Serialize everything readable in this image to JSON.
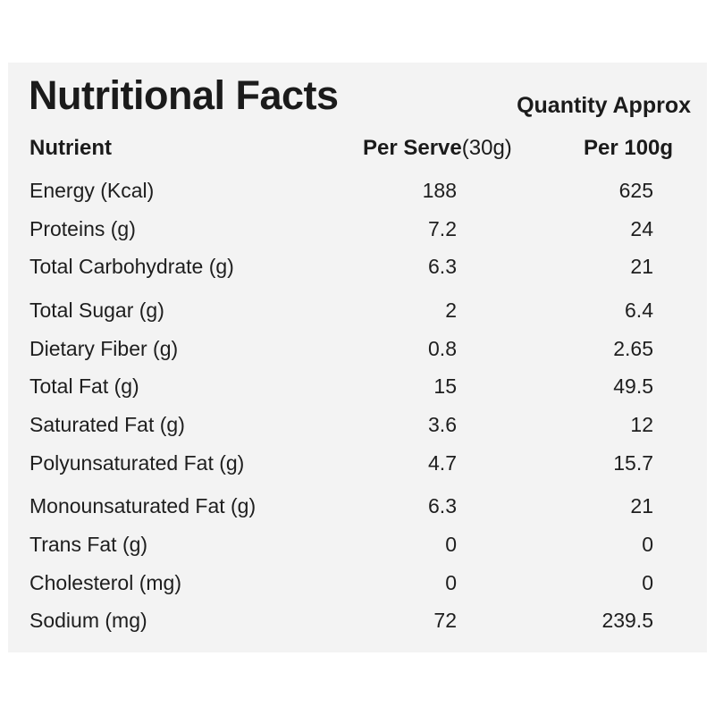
{
  "title": "Nutritional Facts",
  "quantity_label": "Quantity Approx",
  "header": {
    "nutrient": "Nutrient",
    "per_serve": "Per Serve",
    "per_serve_unit": "(30g)",
    "per_100g": "Per 100g"
  },
  "rows": [
    {
      "name": "Energy (Kcal)",
      "per_serve": "188",
      "per_100g": "625"
    },
    {
      "name": "Proteins (g)",
      "per_serve": "7.2",
      "per_100g": "24"
    },
    {
      "name": "Total Carbohydrate (g)",
      "per_serve": "6.3",
      "per_100g": "21"
    },
    {
      "name": "Total Sugar (g)",
      "per_serve": "2",
      "per_100g": "6.4"
    },
    {
      "name": "Dietary Fiber (g)",
      "per_serve": "0.8",
      "per_100g": "2.65"
    },
    {
      "name": "Total Fat (g)",
      "per_serve": "15",
      "per_100g": "49.5"
    },
    {
      "name": "Saturated Fat (g)",
      "per_serve": "3.6",
      "per_100g": "12"
    },
    {
      "name": "Polyunsaturated Fat (g)",
      "per_serve": "4.7",
      "per_100g": "15.7"
    },
    {
      "name": "Monounsaturated Fat (g)",
      "per_serve": "6.3",
      "per_100g": "21"
    },
    {
      "name": "Trans Fat (g)",
      "per_serve": "0",
      "per_100g": "0"
    },
    {
      "name": "Cholesterol (mg)",
      "per_serve": "0",
      "per_100g": "0"
    },
    {
      "name": "Sodium (mg)",
      "per_serve": "72",
      "per_100g": "239.5"
    }
  ]
}
